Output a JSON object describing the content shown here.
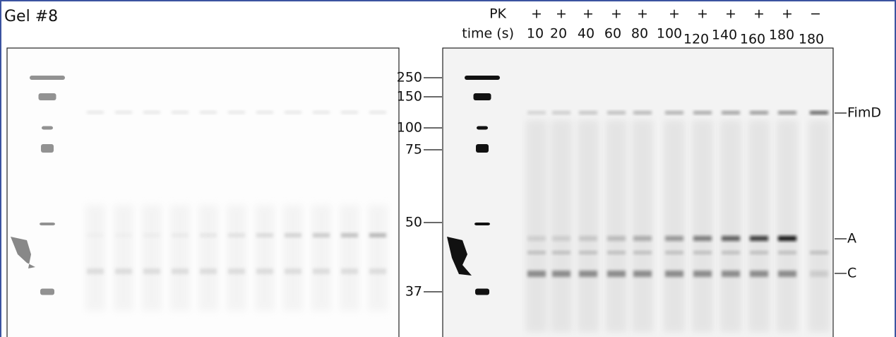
{
  "title": "Gel #8",
  "header": {
    "pk_label": "PK",
    "pk": [
      "+",
      "+",
      "+",
      "+",
      "+",
      "+",
      "+",
      "+",
      "+",
      "+",
      "−"
    ],
    "time_label": "time (s)",
    "times": [
      "10",
      "20",
      "40",
      "60",
      "80",
      "100",
      "120",
      "140",
      "160",
      "180",
      "180"
    ]
  },
  "markers": [
    "250",
    "150",
    "100",
    "75",
    "50",
    "37"
  ],
  "bands": [
    "FimD",
    "A",
    "C"
  ]
}
